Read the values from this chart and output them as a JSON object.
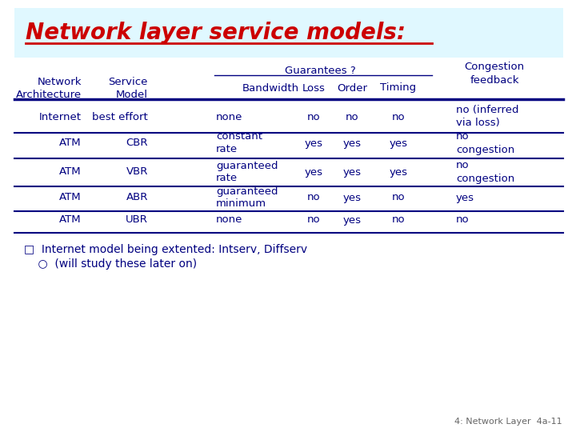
{
  "title": "Network layer service models:",
  "title_color": "#cc0000",
  "background_color": "#ffffff",
  "header_bg_color": "#e0f8ff",
  "text_color": "#000080",
  "line_color": "#000080",
  "rows": [
    [
      "Internet",
      "best effort",
      "none",
      "no",
      "no",
      "no",
      "no (inferred\nvia loss)"
    ],
    [
      "ATM",
      "CBR",
      "constant\nrate",
      "yes",
      "yes",
      "yes",
      "no\ncongestion"
    ],
    [
      "ATM",
      "VBR",
      "guaranteed\nrate",
      "yes",
      "yes",
      "yes",
      "no\ncongestion"
    ],
    [
      "ATM",
      "ABR",
      "guaranteed\nminimum",
      "no",
      "yes",
      "no",
      "yes"
    ],
    [
      "ATM",
      "UBR",
      "none",
      "no",
      "yes",
      "no",
      "no"
    ]
  ],
  "footer_line1": "□  Internet model being extented: Intserv, Diffserv",
  "footer_line2": "    ○  (will study these later on)",
  "slide_number": "4: Network Layer  4a-11"
}
